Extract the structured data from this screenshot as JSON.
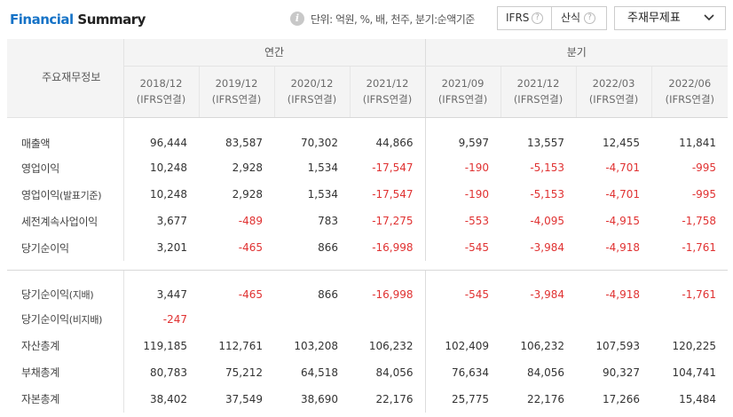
{
  "header": {
    "title_part1": "Financial",
    "title_part2": "Summary",
    "unit_text": "단위: 억원, %, 배, 천주, 분기:순액기준",
    "toggle_ifrs": "IFRS",
    "toggle_calc": "산식",
    "help_glyph": "?",
    "select_value": "주재무제표",
    "info_icon": "i"
  },
  "table": {
    "rowhead": "주요재무정보",
    "group_annual": "연간",
    "group_quarter": "분기",
    "periods": [
      {
        "date": "2018/12",
        "basis": "(IFRS연결)"
      },
      {
        "date": "2019/12",
        "basis": "(IFRS연결)"
      },
      {
        "date": "2020/12",
        "basis": "(IFRS연결)"
      },
      {
        "date": "2021/12",
        "basis": "(IFRS연결)"
      },
      {
        "date": "2021/09",
        "basis": "(IFRS연결)"
      },
      {
        "date": "2021/12",
        "basis": "(IFRS연결)"
      },
      {
        "date": "2022/03",
        "basis": "(IFRS연결)"
      },
      {
        "date": "2022/06",
        "basis": "(IFRS연결)"
      }
    ],
    "rows": [
      {
        "label": "매출액",
        "sub": "",
        "values": [
          "96,444",
          "83,587",
          "70,302",
          "44,866",
          "9,597",
          "13,557",
          "12,455",
          "11,841"
        ]
      },
      {
        "label": "영업이익",
        "sub": "",
        "values": [
          "10,248",
          "2,928",
          "1,534",
          "-17,547",
          "-190",
          "-5,153",
          "-4,701",
          "-995"
        ]
      },
      {
        "label": "영업이익",
        "sub": "(발표기준)",
        "values": [
          "10,248",
          "2,928",
          "1,534",
          "-17,547",
          "-190",
          "-5,153",
          "-4,701",
          "-995"
        ]
      },
      {
        "label": "세전계속사업이익",
        "sub": "",
        "values": [
          "3,677",
          "-489",
          "783",
          "-17,275",
          "-553",
          "-4,095",
          "-4,915",
          "-1,758"
        ]
      },
      {
        "label": "당기순이익",
        "sub": "",
        "values": [
          "3,201",
          "-465",
          "866",
          "-16,998",
          "-545",
          "-3,984",
          "-4,918",
          "-1,761"
        ]
      },
      {
        "label": "당기순이익",
        "sub": "(지배)",
        "values": [
          "3,447",
          "-465",
          "866",
          "-16,998",
          "-545",
          "-3,984",
          "-4,918",
          "-1,761"
        ]
      },
      {
        "label": "당기순이익",
        "sub": "(비지배)",
        "values": [
          "-247",
          "",
          "",
          "",
          "",
          "",
          "",
          ""
        ]
      },
      {
        "label": "자산총계",
        "sub": "",
        "values": [
          "119,185",
          "112,761",
          "103,208",
          "106,232",
          "102,409",
          "106,232",
          "107,593",
          "120,225"
        ]
      },
      {
        "label": "부채총계",
        "sub": "",
        "values": [
          "80,783",
          "75,212",
          "64,518",
          "84,056",
          "76,634",
          "84,056",
          "90,327",
          "104,741"
        ]
      },
      {
        "label": "자본총계",
        "sub": "",
        "values": [
          "38,402",
          "37,549",
          "38,690",
          "22,176",
          "25,775",
          "22,176",
          "17,266",
          "15,484"
        ]
      }
    ]
  },
  "colors": {
    "title_accent": "#1673c7",
    "negative": "#e03232",
    "header_bg": "#f4f4f4"
  }
}
